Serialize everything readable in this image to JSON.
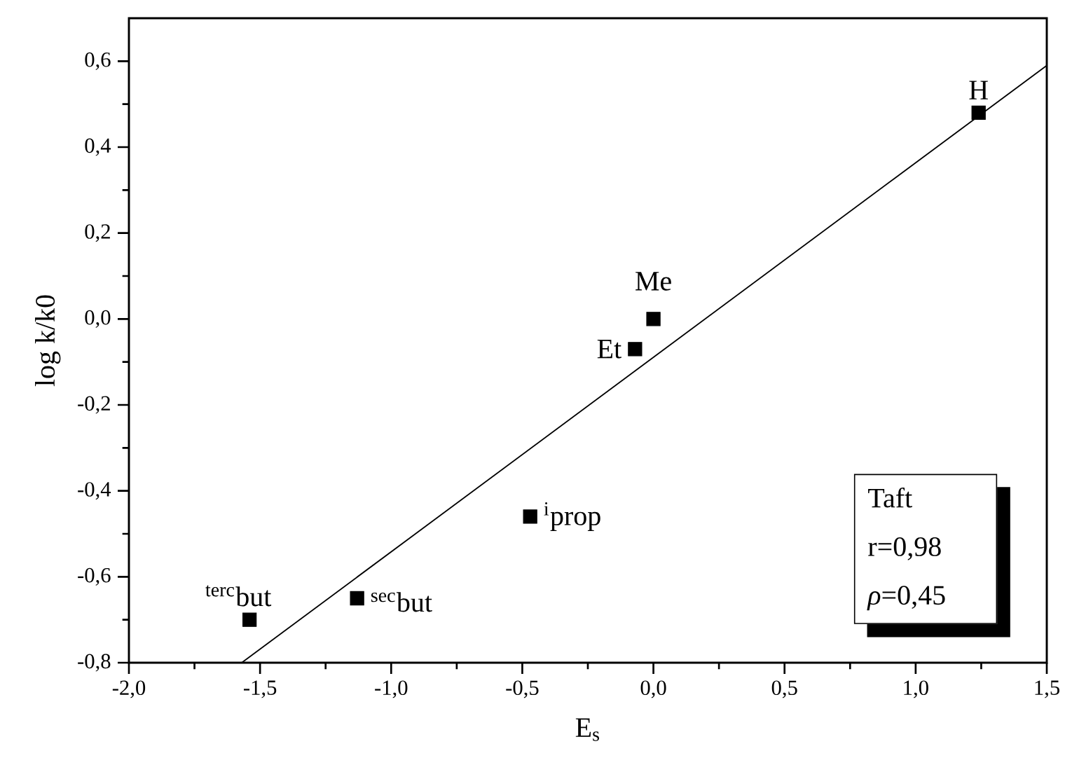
{
  "chart_data": {
    "type": "scatter",
    "xlabel": "E$_{s}$",
    "ylabel": "log k/k0",
    "xlim": [
      -2.0,
      1.5
    ],
    "ylim": [
      -0.8,
      0.7
    ],
    "xticks": [
      {
        "value": -2.0,
        "label": "-2,0"
      },
      {
        "value": -1.75,
        "label": null
      },
      {
        "value": -1.5,
        "label": "-1,5"
      },
      {
        "value": -1.25,
        "label": null
      },
      {
        "value": -1.0,
        "label": "-1,0"
      },
      {
        "value": -0.75,
        "label": null
      },
      {
        "value": -0.5,
        "label": "-0,5"
      },
      {
        "value": -0.25,
        "label": null
      },
      {
        "value": 0.0,
        "label": "0,0"
      },
      {
        "value": 0.25,
        "label": null
      },
      {
        "value": 0.5,
        "label": "0,5"
      },
      {
        "value": 0.75,
        "label": null
      },
      {
        "value": 1.0,
        "label": "1,0"
      },
      {
        "value": 1.25,
        "label": null
      },
      {
        "value": 1.5,
        "label": "1,5"
      }
    ],
    "yticks": [
      {
        "value": -0.8,
        "label": "-0,8"
      },
      {
        "value": -0.7,
        "label": null
      },
      {
        "value": -0.6,
        "label": "-0,6"
      },
      {
        "value": -0.5,
        "label": null
      },
      {
        "value": -0.4,
        "label": "-0,4"
      },
      {
        "value": -0.3,
        "label": null
      },
      {
        "value": -0.2,
        "label": "-0,2"
      },
      {
        "value": -0.1,
        "label": null
      },
      {
        "value": 0.0,
        "label": "0,0"
      },
      {
        "value": 0.1,
        "label": null
      },
      {
        "value": 0.2,
        "label": "0,2"
      },
      {
        "value": 0.3,
        "label": null
      },
      {
        "value": 0.4,
        "label": "0,4"
      },
      {
        "value": 0.5,
        "label": null
      },
      {
        "value": 0.6,
        "label": "0,6"
      }
    ],
    "series": [
      {
        "marker": "square",
        "color": "#000000",
        "x": [
          1.24,
          0.0,
          -0.07,
          -0.47,
          -1.13,
          -1.54
        ],
        "values": [
          0.48,
          0.0,
          -0.07,
          -0.46,
          -0.65,
          -0.7
        ]
      },
      {
        "type": "line",
        "marker": "none",
        "line_style": "solid",
        "color": "#000000",
        "x": [
          -1.57,
          1.5
        ],
        "values": [
          -0.8,
          0.59
        ]
      }
    ],
    "annotations": [
      {
        "text": "H",
        "x": 1.24,
        "y": 0.48
      },
      {
        "text": "Me",
        "x": 0.0,
        "y": 0.0
      },
      {
        "text": "Et",
        "x": -0.07,
        "y": -0.07
      },
      {
        "text": "$^{i}$prop",
        "x": -0.47,
        "y": -0.46
      },
      {
        "text": "$^{sec}$but",
        "x": -1.13,
        "y": -0.65
      },
      {
        "text": "$^{terc}$but",
        "x": -1.54,
        "y": -0.7
      },
      "Taft",
      "r=0,98",
      "*ρ*=0,45"
    ]
  }
}
